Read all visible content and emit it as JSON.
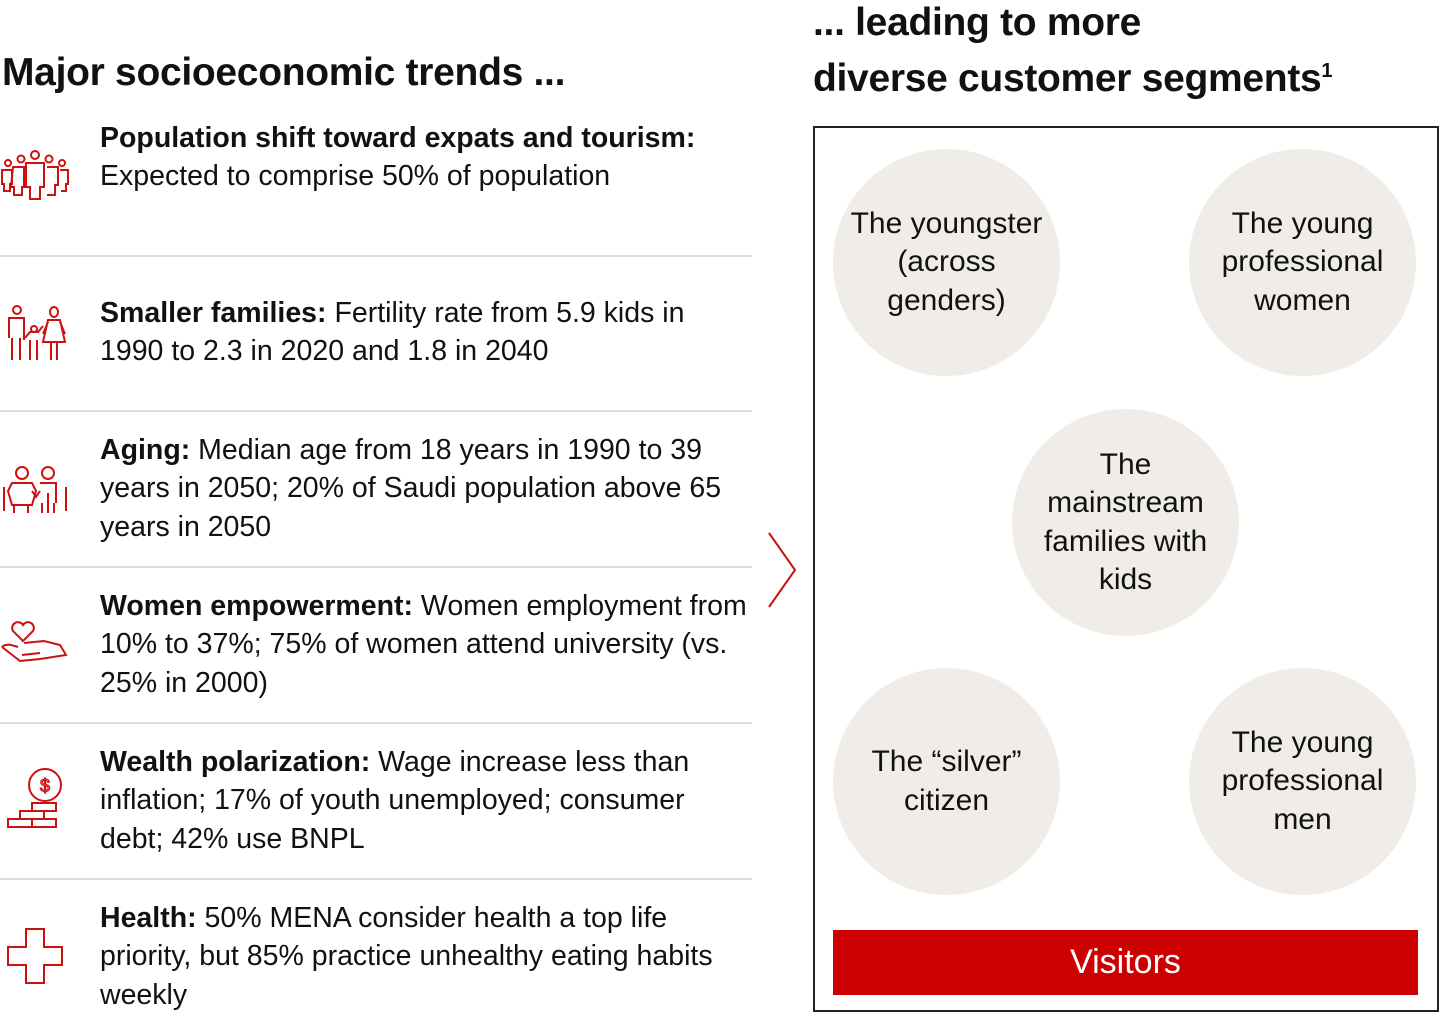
{
  "left_title": "Major socioeconomic trends ...",
  "right_title_line1": "... leading to more",
  "right_title_line2": "diverse customer segments",
  "right_title_footnote": "1",
  "trends": [
    {
      "icon": "group-of-people-icon",
      "bold": "Population shift toward expats and tourism:",
      "text": " Expected to comprise 50% of population"
    },
    {
      "icon": "family-icon",
      "bold": "Smaller families:",
      "text": " Fertility rate from 5.9 kids in 1990 to 2.3 in 2020 and 1.8 in 2040"
    },
    {
      "icon": "elderly-couple-icon",
      "bold": "Aging:",
      "text": " Median age from 18 years in 1990 to 39 years in 2050; 20% of Saudi population above 65 years in 2050"
    },
    {
      "icon": "heart-in-hand-icon",
      "bold": "Women empowerment:",
      "text": " Women employment from 10% to 37%; 75% of women attend university (vs. 25% in 2000)"
    },
    {
      "icon": "coin-on-bricks-icon",
      "bold": "Wealth polarization:",
      "text": " Wage increase less than inflation; 17% of youth unemployed; consumer debt; 42% use BNPL"
    },
    {
      "icon": "medical-cross-icon",
      "bold": "Health:",
      "text": " 50% MENA consider health a top life priority, but 85% practice unhealthy eating habits weekly"
    }
  ],
  "segments": [
    "The youngster (across genders)",
    "The young professional women",
    "The mainstream families with kids",
    "The “silver” citizen",
    "The young professional men"
  ],
  "visitors_label": "Visitors",
  "colors": {
    "accent": "#cc0000",
    "circle": "#f0ede8"
  }
}
